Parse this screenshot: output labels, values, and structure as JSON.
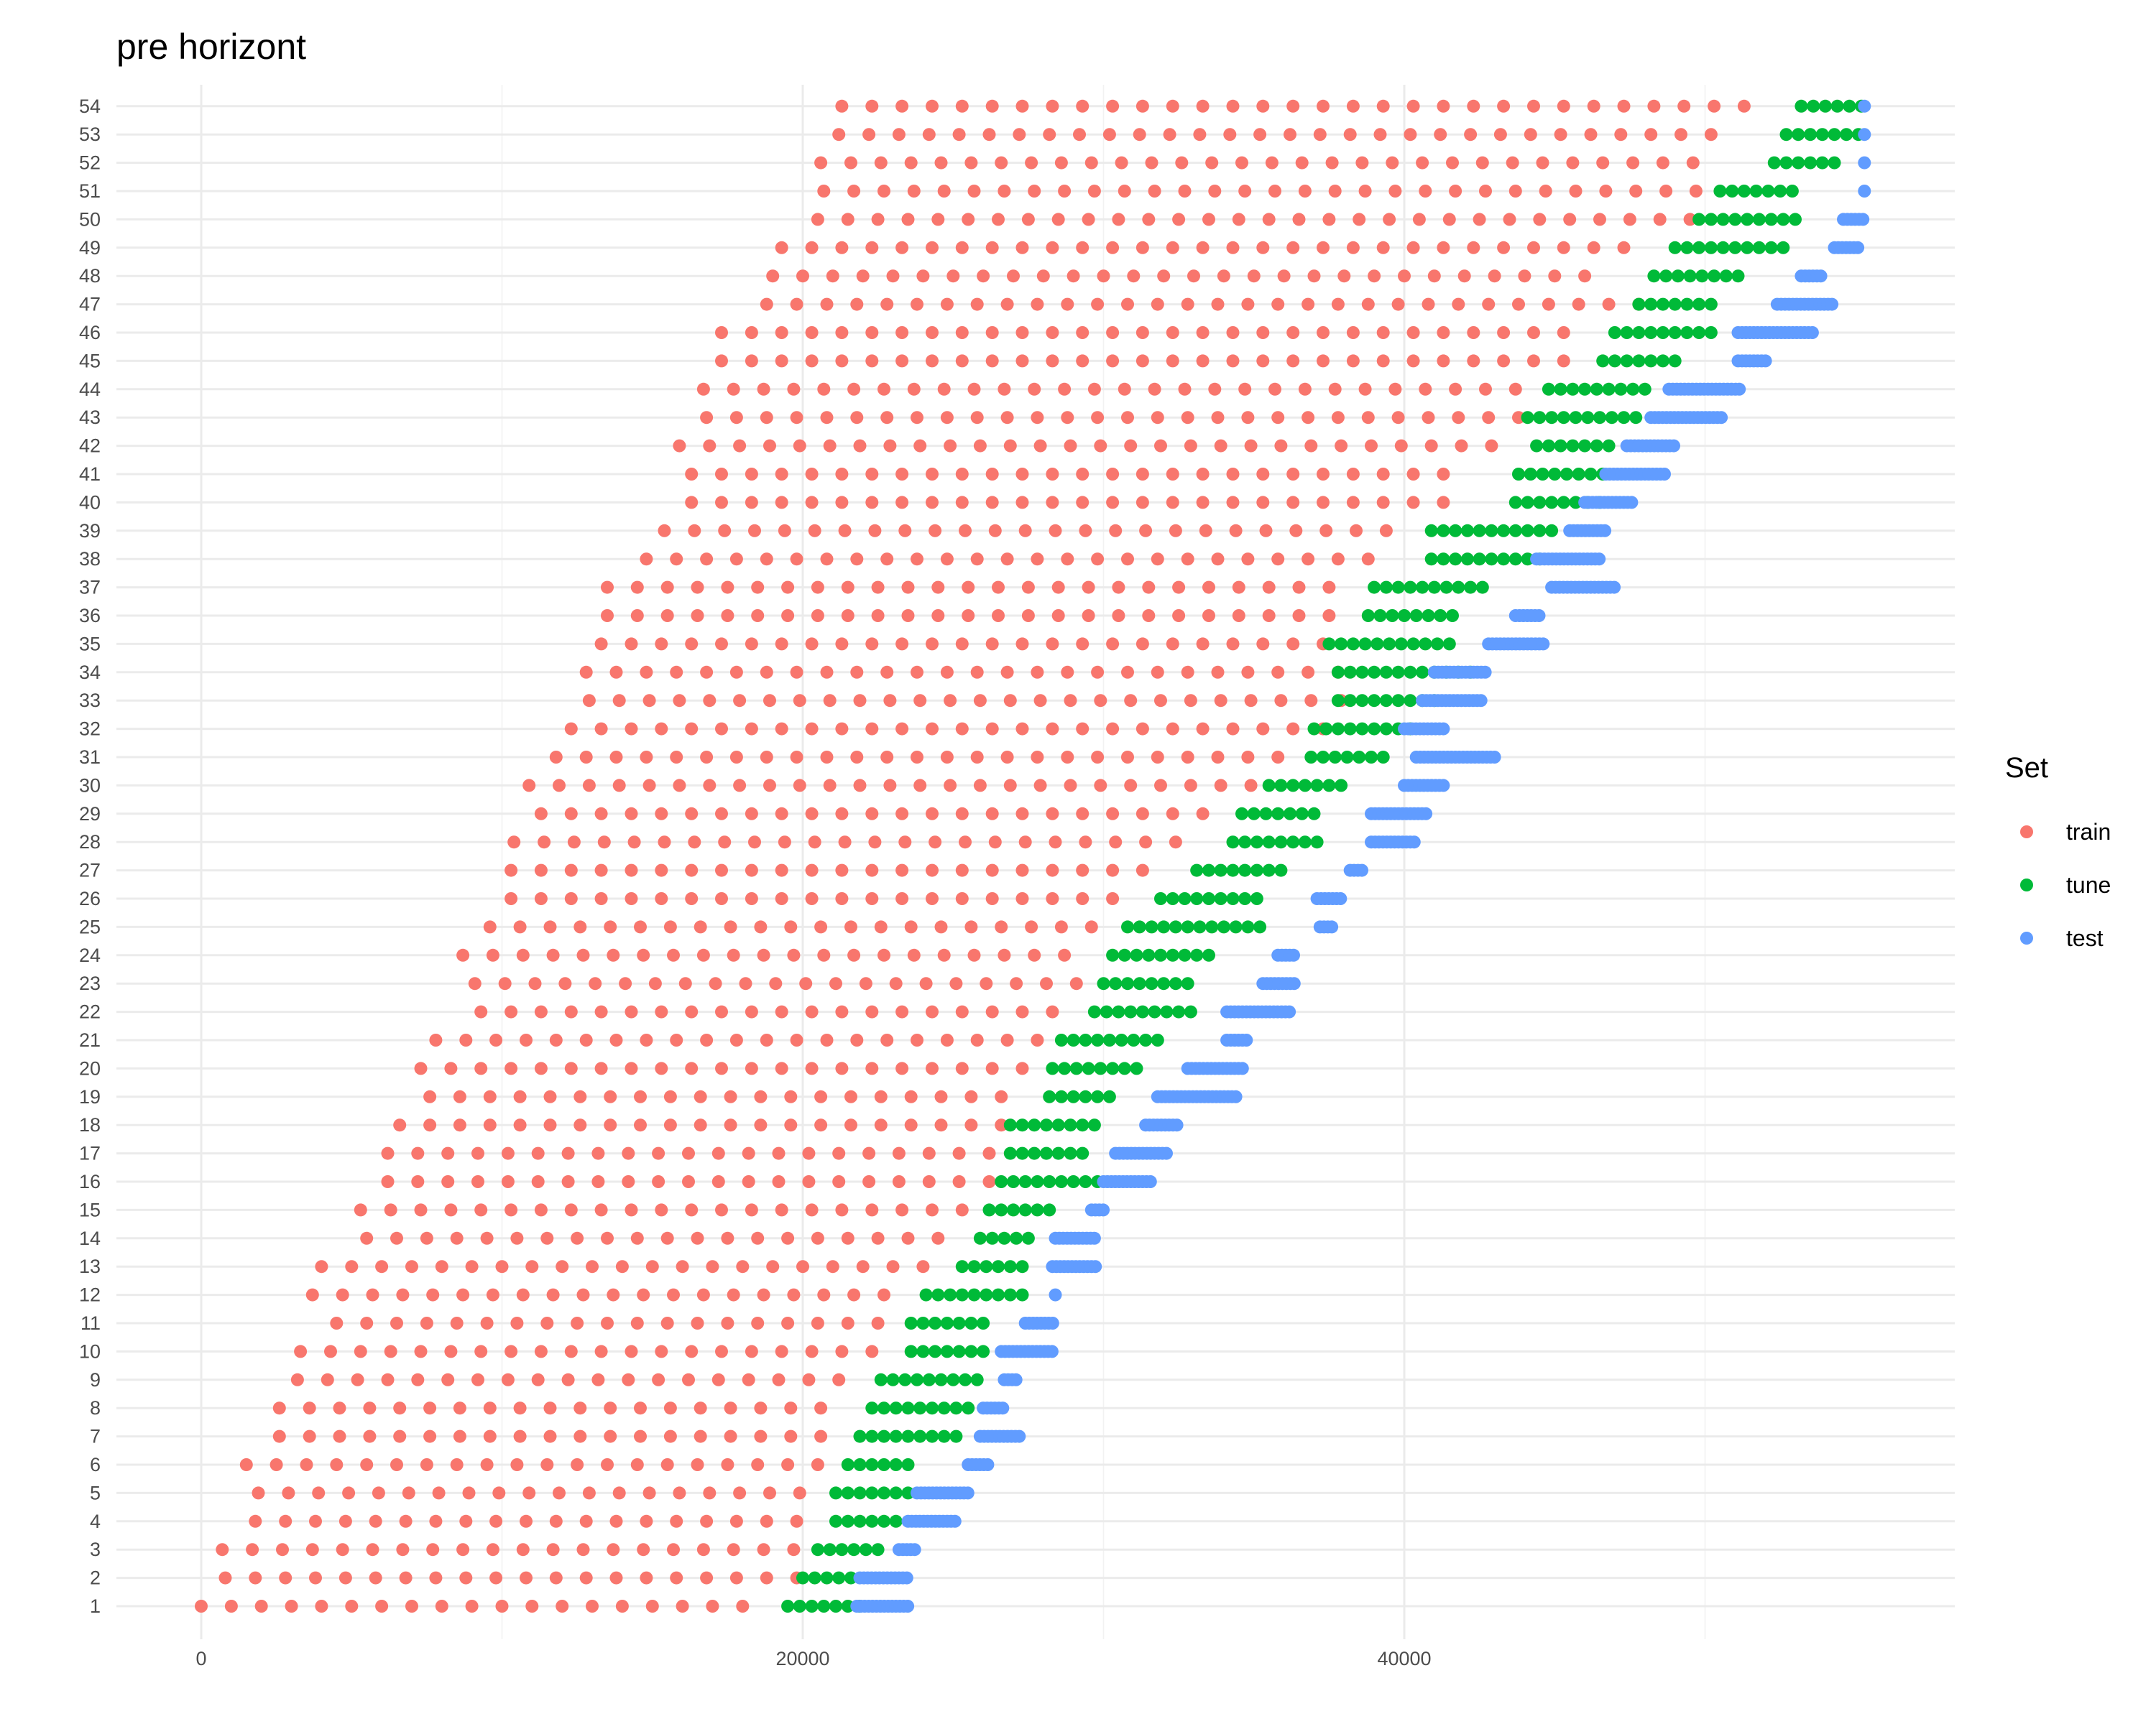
{
  "chart_data": {
    "type": "scatter",
    "title": "pre horizont",
    "xlabel": "",
    "ylabel": "",
    "xlim": [
      -3000,
      58000
    ],
    "ylim": [
      1,
      54
    ],
    "x_ticks": [
      0,
      20000,
      40000
    ],
    "x_tick_labels": [
      "0",
      "20000",
      "40000"
    ],
    "y_ticks": [
      1,
      2,
      3,
      4,
      5,
      6,
      7,
      8,
      9,
      10,
      11,
      12,
      13,
      14,
      15,
      16,
      17,
      18,
      19,
      20,
      21,
      22,
      23,
      24,
      25,
      26,
      27,
      28,
      29,
      30,
      31,
      32,
      33,
      34,
      35,
      36,
      37,
      38,
      39,
      40,
      41,
      42,
      43,
      44,
      45,
      46,
      47,
      48,
      49,
      50,
      51,
      52,
      53,
      54
    ],
    "grid": true,
    "theme": "minimal",
    "legend": {
      "title": "Set",
      "position": "right",
      "entries": [
        {
          "label": "train",
          "color": "#F8766D"
        },
        {
          "label": "tune",
          "color": "#00BA38"
        },
        {
          "label": "test",
          "color": "#619CFF"
        }
      ]
    },
    "series_rule": "Each row y (1-54) holds points at regular x steps: train points first, then tune points, then test points.",
    "series": [
      {
        "name": "train",
        "step": 1000,
        "ranges": [
          [
            1,
            0,
            18000
          ],
          [
            2,
            800,
            19800
          ],
          [
            3,
            700,
            19700
          ],
          [
            4,
            1800,
            19800
          ],
          [
            5,
            1900,
            19900
          ],
          [
            6,
            1500,
            20500
          ],
          [
            7,
            2600,
            20600
          ],
          [
            8,
            2600,
            20600
          ],
          [
            9,
            3200,
            21200
          ],
          [
            10,
            3300,
            22300
          ],
          [
            11,
            4500,
            22500
          ],
          [
            12,
            3700,
            22700
          ],
          [
            13,
            4000,
            24000
          ],
          [
            14,
            5500,
            24500
          ],
          [
            15,
            5300,
            25300
          ],
          [
            16,
            6200,
            26200
          ],
          [
            17,
            6200,
            26200
          ],
          [
            18,
            6600,
            26600
          ],
          [
            19,
            7600,
            26600
          ],
          [
            20,
            7300,
            27300
          ],
          [
            21,
            7800,
            27800
          ],
          [
            22,
            9300,
            28300
          ],
          [
            23,
            9100,
            29100
          ],
          [
            24,
            8700,
            28700
          ],
          [
            25,
            9600,
            29600
          ],
          [
            26,
            10300,
            30300
          ],
          [
            27,
            10300,
            31300
          ],
          [
            28,
            10400,
            32400
          ],
          [
            29,
            11300,
            33300
          ],
          [
            30,
            10900,
            34900
          ],
          [
            31,
            11800,
            35800
          ],
          [
            32,
            12300,
            37300
          ],
          [
            33,
            12900,
            37900
          ],
          [
            34,
            12800,
            37800
          ],
          [
            35,
            13300,
            37300
          ],
          [
            36,
            13500,
            37500
          ],
          [
            37,
            13500,
            37500
          ],
          [
            38,
            14800,
            38800
          ],
          [
            39,
            15400,
            39400
          ],
          [
            40,
            16300,
            41300
          ],
          [
            41,
            16300,
            41300
          ],
          [
            42,
            15900,
            42900
          ],
          [
            43,
            16800,
            43800
          ],
          [
            44,
            16700,
            43700
          ],
          [
            45,
            17300,
            45300
          ],
          [
            46,
            17300,
            45300
          ],
          [
            47,
            18800,
            47800
          ],
          [
            48,
            19000,
            46000
          ],
          [
            49,
            19300,
            47300
          ],
          [
            50,
            20500,
            49500
          ],
          [
            51,
            20700,
            49700
          ],
          [
            52,
            20600,
            49600
          ],
          [
            53,
            21200,
            50200
          ],
          [
            54,
            21300,
            51300
          ]
        ]
      },
      {
        "name": "tune",
        "step": 400,
        "ranges": [
          [
            1,
            19500,
            21900
          ],
          [
            2,
            20000,
            21600
          ],
          [
            3,
            20500,
            22500
          ],
          [
            4,
            21100,
            23100
          ],
          [
            5,
            21100,
            23500
          ],
          [
            6,
            21500,
            23500
          ],
          [
            7,
            21900,
            25100
          ],
          [
            8,
            22300,
            25500
          ],
          [
            9,
            22600,
            25800
          ],
          [
            10,
            23600,
            26000
          ],
          [
            11,
            23600,
            26000
          ],
          [
            12,
            24100,
            27300
          ],
          [
            13,
            25300,
            27300
          ],
          [
            14,
            25900,
            27500
          ],
          [
            15,
            26200,
            28200
          ],
          [
            16,
            26600,
            29800
          ],
          [
            17,
            26900,
            29300
          ],
          [
            18,
            26900,
            29700
          ],
          [
            19,
            28200,
            30200
          ],
          [
            20,
            28300,
            31100
          ],
          [
            21,
            28600,
            31800
          ],
          [
            22,
            29700,
            32900
          ],
          [
            23,
            30000,
            32800
          ],
          [
            24,
            30300,
            33500
          ],
          [
            25,
            30800,
            35200
          ],
          [
            26,
            31900,
            35100
          ],
          [
            27,
            33100,
            35900
          ],
          [
            28,
            34300,
            37400
          ],
          [
            29,
            34600,
            37000
          ],
          [
            30,
            35500,
            37900
          ],
          [
            31,
            36900,
            39300
          ],
          [
            32,
            37000,
            40200
          ],
          [
            33,
            37800,
            41000
          ],
          [
            34,
            37800,
            42200
          ],
          [
            35,
            37500,
            41500
          ],
          [
            36,
            38800,
            41900
          ],
          [
            37,
            39000,
            42600
          ],
          [
            38,
            40900,
            44500
          ],
          [
            39,
            40900,
            44900
          ],
          [
            40,
            43700,
            46500
          ],
          [
            41,
            43800,
            46600
          ],
          [
            42,
            44400,
            46800
          ],
          [
            43,
            44100,
            47700
          ],
          [
            44,
            44800,
            48000
          ],
          [
            45,
            46600,
            49100
          ],
          [
            46,
            47000,
            50200
          ],
          [
            47,
            47800,
            50200
          ],
          [
            48,
            48300,
            51100
          ],
          [
            49,
            49000,
            52600
          ],
          [
            50,
            49800,
            53000
          ],
          [
            51,
            50500,
            52900
          ],
          [
            52,
            52300,
            54300
          ],
          [
            53,
            52700,
            55100
          ],
          [
            54,
            53200,
            55200
          ]
        ]
      },
      {
        "name": "test",
        "step": 130,
        "ranges": [
          [
            1,
            21800,
            23500
          ],
          [
            2,
            21900,
            23500
          ],
          [
            3,
            23200,
            23800
          ],
          [
            4,
            23500,
            25100
          ],
          [
            5,
            23800,
            25600
          ],
          [
            6,
            25500,
            26200
          ],
          [
            7,
            25900,
            27200
          ],
          [
            8,
            26000,
            26700
          ],
          [
            9,
            26700,
            27100
          ],
          [
            10,
            26600,
            28400
          ],
          [
            11,
            27400,
            28400
          ],
          [
            12,
            28400,
            28500
          ],
          [
            13,
            28300,
            29800
          ],
          [
            14,
            28400,
            29800
          ],
          [
            15,
            29600,
            30000
          ],
          [
            16,
            30000,
            31600
          ],
          [
            17,
            30400,
            32200
          ],
          [
            18,
            31400,
            32500
          ],
          [
            19,
            31800,
            34400
          ],
          [
            20,
            32800,
            34700
          ],
          [
            21,
            34100,
            34800
          ],
          [
            22,
            34100,
            36300
          ],
          [
            23,
            35300,
            36400
          ],
          [
            24,
            35800,
            36400
          ],
          [
            25,
            37200,
            37700
          ],
          [
            26,
            37100,
            37900
          ],
          [
            27,
            38200,
            38700
          ],
          [
            28,
            38900,
            40400
          ],
          [
            29,
            38900,
            40800
          ],
          [
            30,
            40000,
            41300
          ],
          [
            31,
            40400,
            43100
          ],
          [
            32,
            40000,
            41300
          ],
          [
            33,
            40600,
            42600
          ],
          [
            34,
            41000,
            42700
          ],
          [
            35,
            42800,
            44700
          ],
          [
            36,
            43700,
            44600
          ],
          [
            37,
            44900,
            47000
          ],
          [
            38,
            44400,
            46500
          ],
          [
            39,
            45500,
            46700
          ],
          [
            40,
            46000,
            47600
          ],
          [
            41,
            46700,
            48700
          ],
          [
            42,
            47400,
            49000
          ],
          [
            43,
            48200,
            50600
          ],
          [
            44,
            48800,
            51200
          ],
          [
            45,
            51100,
            52100
          ],
          [
            46,
            51100,
            53600
          ],
          [
            47,
            52400,
            54300
          ],
          [
            48,
            53200,
            53900
          ],
          [
            49,
            54300,
            55200
          ],
          [
            50,
            54600,
            55300
          ],
          [
            51,
            55300,
            55400
          ],
          [
            52,
            55300,
            55400
          ],
          [
            53,
            55300,
            55400
          ],
          [
            54,
            55300,
            55400
          ]
        ]
      }
    ]
  }
}
